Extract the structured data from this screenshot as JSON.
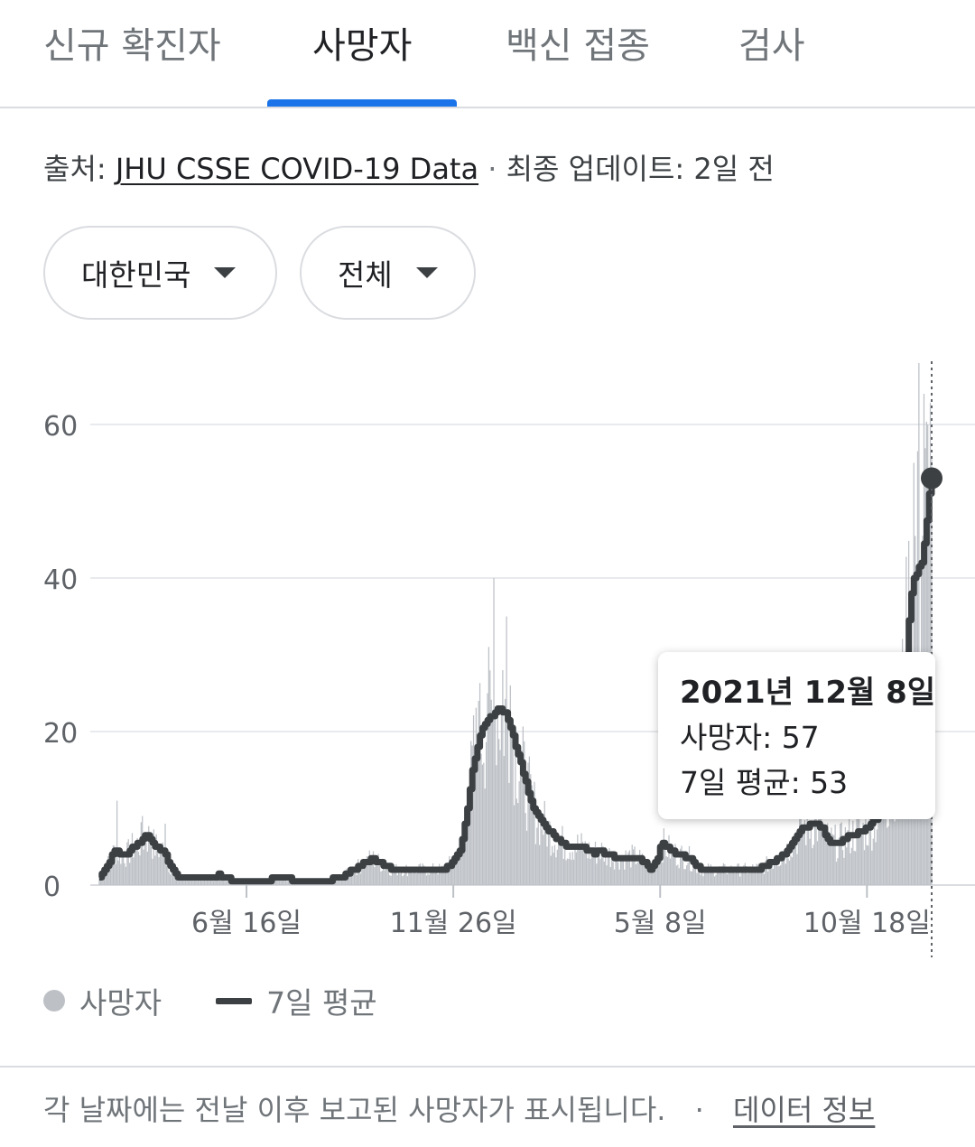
{
  "tabs": [
    {
      "label": "신규 확진자",
      "active": false
    },
    {
      "label": "사망자",
      "active": true
    },
    {
      "label": "백신 접종",
      "active": false
    },
    {
      "label": "검사",
      "active": false
    }
  ],
  "source": {
    "prefix": "출처:",
    "link": "JHU CSSE COVID-19 Data",
    "separator": "·",
    "updated": "최종 업데이트: 2일 전"
  },
  "filters": {
    "region": "대한민국",
    "range": "전체"
  },
  "tooltip": {
    "date": "2021년 12월 8일",
    "deaths_label": "사망자: 57",
    "avg_label": "7일 평균: 53"
  },
  "legend": {
    "bars": "사망자",
    "line": "7일 평균"
  },
  "footer": {
    "note": "각 날짜에는 전날 이후 보고된 사망자가 표시됩니다.",
    "separator": "·",
    "link": "데이터 정보"
  },
  "colors": {
    "accent": "#1a73e8",
    "bars": "#bdc1c6",
    "line": "#3c4043",
    "grid": "#e8eaed"
  },
  "chart_data": {
    "type": "bar",
    "ylim": [
      0,
      68
    ],
    "yticks": [
      0,
      20,
      40,
      60
    ],
    "xticks": [
      {
        "label": "6월 16일",
        "day": 116
      },
      {
        "label": "11월 26일",
        "day": 279
      },
      {
        "label": "5월 8일",
        "day": 442
      },
      {
        "label": "10월 18일",
        "day": 605
      }
    ],
    "grid": true,
    "highlight_day": 656,
    "series": [
      {
        "name": "사망자",
        "type": "bar"
      },
      {
        "name": "7일 평균",
        "type": "line",
        "points": [
          [
            0,
            1
          ],
          [
            3,
            2
          ],
          [
            8,
            3
          ],
          [
            12,
            4.5
          ],
          [
            17,
            4
          ],
          [
            22,
            4
          ],
          [
            27,
            5
          ],
          [
            32,
            5.5
          ],
          [
            37,
            6.5
          ],
          [
            40,
            6
          ],
          [
            44,
            5
          ],
          [
            50,
            4.5
          ],
          [
            54,
            3
          ],
          [
            57,
            2
          ],
          [
            62,
            1
          ],
          [
            90,
            1
          ],
          [
            94,
            1.3
          ],
          [
            100,
            0.8
          ],
          [
            120,
            0.5
          ],
          [
            135,
            0.7
          ],
          [
            140,
            1
          ],
          [
            150,
            0.8
          ],
          [
            155,
            0.5
          ],
          [
            175,
            0.5
          ],
          [
            185,
            0.8
          ],
          [
            190,
            1
          ],
          [
            195,
            1.5
          ],
          [
            200,
            2
          ],
          [
            205,
            2.5
          ],
          [
            210,
            3
          ],
          [
            215,
            3.5
          ],
          [
            220,
            3
          ],
          [
            225,
            2.5
          ],
          [
            228,
            2.5
          ],
          [
            230,
            2
          ],
          [
            250,
            2
          ],
          [
            270,
            2
          ],
          [
            275,
            2.5
          ],
          [
            278,
            3
          ],
          [
            285,
            5
          ],
          [
            290,
            10
          ],
          [
            295,
            16
          ],
          [
            300,
            19.5
          ],
          [
            305,
            21.5
          ],
          [
            310,
            22
          ],
          [
            315,
            23
          ],
          [
            320,
            22.5
          ],
          [
            325,
            20
          ],
          [
            330,
            17
          ],
          [
            335,
            14
          ],
          [
            340,
            11
          ],
          [
            345,
            9
          ],
          [
            350,
            8
          ],
          [
            355,
            7
          ],
          [
            360,
            6
          ],
          [
            365,
            5.5
          ],
          [
            370,
            5
          ],
          [
            375,
            5.2
          ],
          [
            380,
            5
          ],
          [
            385,
            4.5
          ],
          [
            390,
            4.2
          ],
          [
            395,
            4.5
          ],
          [
            400,
            4
          ],
          [
            410,
            3.5
          ],
          [
            420,
            3.7
          ],
          [
            425,
            3.5
          ],
          [
            430,
            2.8
          ],
          [
            435,
            2
          ],
          [
            440,
            3.5
          ],
          [
            443,
            5.5
          ],
          [
            446,
            5
          ],
          [
            450,
            4.5
          ],
          [
            455,
            4
          ],
          [
            460,
            3.8
          ],
          [
            465,
            3.5
          ],
          [
            470,
            2.5
          ],
          [
            475,
            2
          ],
          [
            485,
            2
          ],
          [
            500,
            2
          ],
          [
            510,
            2
          ],
          [
            520,
            2.2
          ],
          [
            525,
            2.5
          ],
          [
            530,
            3
          ],
          [
            535,
            3.5
          ],
          [
            540,
            4
          ],
          [
            545,
            5.5
          ],
          [
            550,
            6.5
          ],
          [
            555,
            7.5
          ],
          [
            560,
            7.8
          ],
          [
            565,
            8
          ],
          [
            570,
            7.5
          ],
          [
            573,
            6
          ],
          [
            578,
            5.5
          ],
          [
            583,
            5.5
          ],
          [
            588,
            6
          ],
          [
            592,
            6.5
          ],
          [
            598,
            6.8
          ],
          [
            602,
            7
          ],
          [
            608,
            8
          ],
          [
            612,
            8.5
          ],
          [
            618,
            10
          ],
          [
            625,
            13
          ],
          [
            630,
            18
          ],
          [
            633,
            24
          ],
          [
            636,
            30
          ],
          [
            639,
            37
          ],
          [
            642,
            40
          ],
          [
            645,
            41
          ],
          [
            648,
            42
          ],
          [
            651,
            46
          ],
          [
            654,
            51
          ],
          [
            656,
            53
          ]
        ]
      }
    ]
  }
}
